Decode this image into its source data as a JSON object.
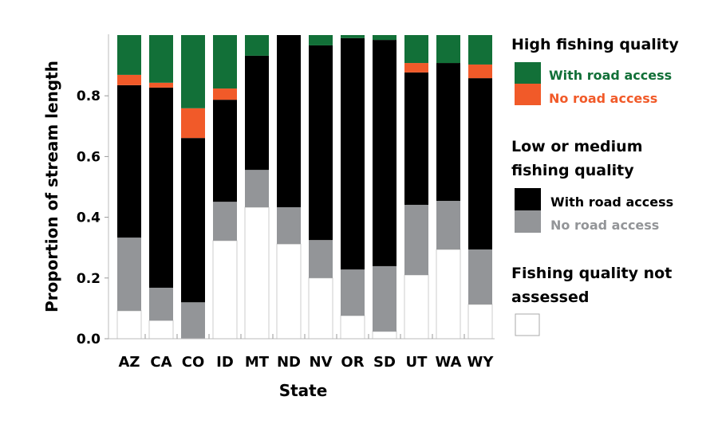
{
  "chart_data": {
    "type": "bar",
    "stacked": true,
    "xlabel": "State",
    "ylabel": "Proportion of stream length",
    "ylim": [
      0,
      1
    ],
    "yticks": [
      "0.0",
      "0.2",
      "0.4",
      "0.6",
      "0.8"
    ],
    "ytick_values": [
      0,
      0.2,
      0.4,
      0.6,
      0.8
    ],
    "grid": false,
    "legend_position": "right",
    "categories": [
      "AZ",
      "CA",
      "CO",
      "ID",
      "MT",
      "ND",
      "NV",
      "OR",
      "SD",
      "UT",
      "WA",
      "WY"
    ],
    "series": [
      {
        "key": "not_assessed",
        "name": "",
        "color": "#ffffff",
        "values": [
          0.092,
          0.06,
          0,
          0.323,
          0.433,
          0.312,
          0.2,
          0.076,
          0.024,
          0.21,
          0.294,
          0.113
        ]
      },
      {
        "key": "low_no_road",
        "name": "No road access",
        "color": "#939598",
        "values": [
          0.241,
          0.108,
          0.12,
          0.128,
          0.123,
          0.121,
          0.125,
          0.152,
          0.215,
          0.231,
          0.16,
          0.181
        ]
      },
      {
        "key": "low_road",
        "name": "With road access",
        "color": "#000000",
        "values": [
          0.502,
          0.659,
          0.541,
          0.336,
          0.376,
          0.567,
          0.641,
          0.762,
          0.745,
          0.436,
          0.454,
          0.564
        ]
      },
      {
        "key": "high_no_road",
        "name": "No road access",
        "color": "#f15a29",
        "values": [
          0.034,
          0.016,
          0.098,
          0.037,
          0,
          0,
          0,
          0,
          0,
          0.031,
          0,
          0.045
        ]
      },
      {
        "key": "high_road",
        "name": "With road access",
        "color": "#127038",
        "values": [
          0.131,
          0.157,
          0.241,
          0.176,
          0.068,
          0,
          0.034,
          0.01,
          0.016,
          0.092,
          0.092,
          0.097
        ]
      }
    ],
    "legend": {
      "high_title": "High fishing quality",
      "high_road": "With road access",
      "high_no_road": "No road access",
      "low_title_1": "Low or medium",
      "low_title_2": "fishing quality",
      "low_road": "With road access",
      "low_no_road": "No road access",
      "na_title_1": "Fishing quality not",
      "na_title_2": "assessed"
    }
  }
}
